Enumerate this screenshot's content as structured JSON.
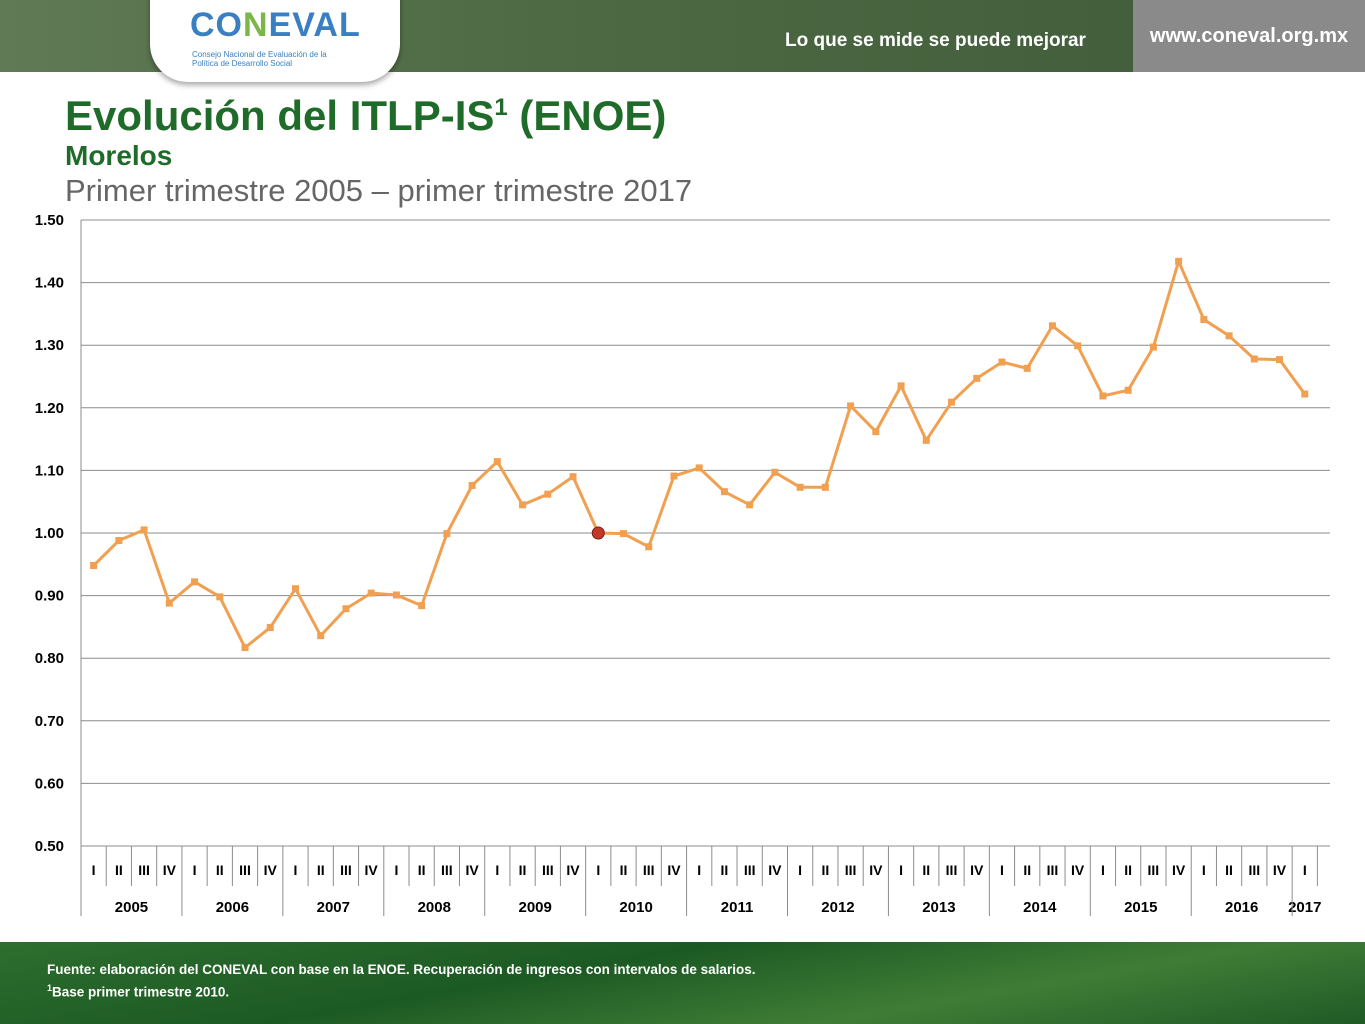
{
  "header": {
    "logo_text": "CONEVAL",
    "logo_subtitle": "Consejo Nacional de Evaluación de la Política de Desarrollo Social",
    "slogan": "Lo que se mide se puede mejorar",
    "url": "www.coneval.org.mx"
  },
  "title": "Evolución del ITLP-IS",
  "title_sup": "1",
  "title_suffix": " (ENOE)",
  "subtitle": "Morelos",
  "period": "Primer trimestre 2005 – primer trimestre 2017",
  "footer": {
    "source": "Fuente: elaboración del CONEVAL con base en la ENOE. Recuperación de ingresos con intervalos de salarios.",
    "note_sup": "1",
    "note": "Base primer trimestre 2010."
  },
  "colors": {
    "line": "#f0a050",
    "highlight": "#c0392b",
    "title": "#1f6b2a"
  },
  "chart_data": {
    "type": "line",
    "ylim": [
      0.5,
      1.5
    ],
    "yticks": [
      "0.50",
      "0.60",
      "0.70",
      "0.80",
      "0.90",
      "1.00",
      "1.10",
      "1.20",
      "1.30",
      "1.40",
      "1.50"
    ],
    "grid": true,
    "quarters": [
      "I",
      "II",
      "III",
      "IV",
      "I",
      "II",
      "III",
      "IV",
      "I",
      "II",
      "III",
      "IV",
      "I",
      "II",
      "III",
      "IV",
      "I",
      "II",
      "III",
      "IV",
      "I",
      "II",
      "III",
      "IV",
      "I",
      "II",
      "III",
      "IV",
      "I",
      "II",
      "III",
      "IV",
      "I",
      "II",
      "III",
      "IV",
      "I",
      "II",
      "III",
      "IV",
      "I",
      "II",
      "III",
      "IV",
      "I",
      "II",
      "III",
      "IV",
      "I"
    ],
    "years": [
      "2005",
      "2006",
      "2007",
      "2008",
      "2009",
      "2010",
      "2011",
      "2012",
      "2013",
      "2014",
      "2015",
      "2016",
      "2017"
    ],
    "values": [
      0.948,
      0.988,
      1.005,
      0.888,
      0.922,
      0.898,
      0.817,
      0.849,
      0.911,
      0.836,
      0.879,
      0.904,
      0.901,
      0.884,
      0.999,
      1.076,
      1.114,
      1.045,
      1.062,
      1.09,
      1.0,
      0.999,
      0.978,
      1.091,
      1.104,
      1.066,
      1.045,
      1.097,
      1.073,
      1.073,
      1.203,
      1.162,
      1.235,
      1.148,
      1.209,
      1.247,
      1.273,
      1.263,
      1.331,
      1.299,
      1.219,
      1.228,
      1.297,
      1.434,
      1.341,
      1.315,
      1.278,
      1.277,
      1.222
    ],
    "highlight_index": 20
  }
}
